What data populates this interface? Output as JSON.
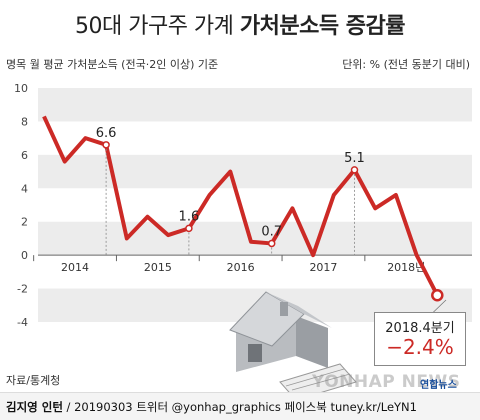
{
  "title": {
    "regular": "50대 가구주 가계 ",
    "bold": "가처분소득 증감률"
  },
  "subtitle_left": "명목 월 평균 가처분소득 (전국·2인 이상) 기준",
  "subtitle_right": "단위: % (전년 동분기 대비)",
  "source": "자료/통계청",
  "credit": {
    "author": "김지영 인턴",
    "rest": " / 20190303 트위터 @yonhap_graphics  페이스북 tuney.kr/LeYN1"
  },
  "watermark": "YONHAP NEWS",
  "brand": "연합뉴스",
  "callout": {
    "label": "2018.4분기",
    "value": "−2.4%"
  },
  "chart_data": {
    "type": "line",
    "title": "50대 가구주 가계 가처분소득 증감률",
    "ylabel": "단위: % (전년 동분기 대비)",
    "ylim": [
      -4,
      10
    ],
    "yticks": [
      10,
      8,
      6,
      4,
      2,
      0,
      -2,
      -4
    ],
    "x_year_labels": [
      "2014",
      "2015",
      "2016",
      "2017",
      "2018년"
    ],
    "x_quarters": [
      "2014.1",
      "2014.2",
      "2014.3",
      "2014.4",
      "2015.1",
      "2015.2",
      "2015.3",
      "2015.4",
      "2016.1",
      "2016.2",
      "2016.3",
      "2016.4",
      "2017.1",
      "2017.2",
      "2017.3",
      "2017.4",
      "2018.1",
      "2018.2",
      "2018.3",
      "2018.4"
    ],
    "values": [
      8.3,
      5.6,
      7.0,
      6.6,
      1.0,
      2.3,
      1.2,
      1.6,
      3.6,
      5.0,
      0.8,
      0.7,
      2.8,
      0.0,
      3.6,
      5.1,
      2.8,
      3.6,
      0.0,
      -2.4
    ],
    "data_labels": [
      {
        "index": 3,
        "text": "6.6"
      },
      {
        "index": 7,
        "text": "1.6"
      },
      {
        "index": 11,
        "text": "0.7"
      },
      {
        "index": 15,
        "text": "5.1"
      }
    ],
    "line_color": "#cc2a26",
    "grid": true
  }
}
